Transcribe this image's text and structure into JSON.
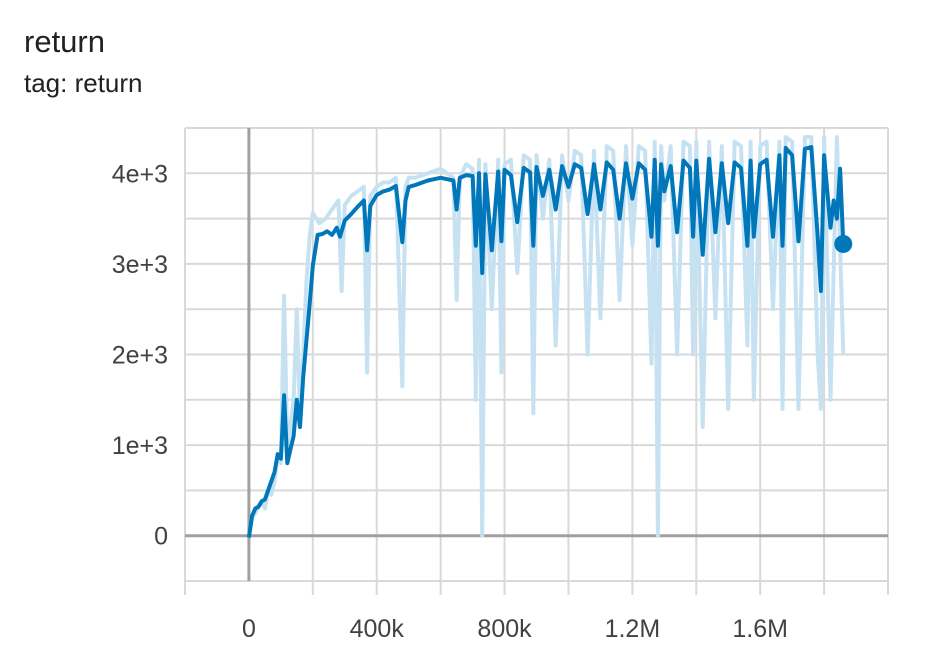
{
  "header": {
    "title": "return",
    "subtitle": "tag: return"
  },
  "colors": {
    "smoothed": "#0077bb",
    "raw": "#c6e2f2",
    "grid": "#d9d9d9",
    "zero_axis": "#a0a0a0"
  },
  "chart_data": {
    "type": "line",
    "title": "return",
    "subtitle": "tag: return",
    "xlabel": "",
    "ylabel": "",
    "xlim": [
      -200000,
      2000000
    ],
    "ylim": [
      -500,
      4500
    ],
    "grid": true,
    "legend": "none",
    "x_ticks": [
      0,
      400000,
      800000,
      1200000,
      1600000
    ],
    "x_tick_labels": [
      "0",
      "400k",
      "800k",
      "1.2M",
      "1.6M"
    ],
    "y_ticks": [
      0,
      1000,
      2000,
      3000,
      4000
    ],
    "y_tick_labels": [
      "0",
      "1e+3",
      "2e+3",
      "3e+3",
      "4e+3"
    ],
    "series": [
      {
        "role": "raw",
        "x": [
          5000,
          10000,
          20000,
          30000,
          40000,
          50000,
          60000,
          70000,
          80000,
          90000,
          100000,
          110000,
          120000,
          130000,
          140000,
          150000,
          160000,
          170000,
          180000,
          190000,
          200000,
          220000,
          240000,
          260000,
          280000,
          290000,
          300000,
          320000,
          340000,
          360000,
          370000,
          380000,
          400000,
          420000,
          440000,
          460000,
          480000,
          490000,
          500000,
          520000,
          560000,
          600000,
          640000,
          650000,
          660000,
          680000,
          700000,
          710000,
          720000,
          730000,
          740000,
          760000,
          780000,
          790000,
          800000,
          820000,
          840000,
          860000,
          880000,
          890000,
          900000,
          920000,
          940000,
          960000,
          980000,
          1000000,
          1020000,
          1040000,
          1060000,
          1080000,
          1100000,
          1120000,
          1140000,
          1160000,
          1180000,
          1200000,
          1220000,
          1240000,
          1260000,
          1270000,
          1280000,
          1290000,
          1300000,
          1320000,
          1340000,
          1360000,
          1380000,
          1390000,
          1400000,
          1420000,
          1440000,
          1460000,
          1480000,
          1500000,
          1520000,
          1540000,
          1560000,
          1570000,
          1580000,
          1600000,
          1620000,
          1640000,
          1660000,
          1670000,
          1680000,
          1700000,
          1720000,
          1740000,
          1760000,
          1780000,
          1790000,
          1800000,
          1820000,
          1840000,
          1860000
        ],
        "values": [
          100,
          200,
          250,
          320,
          380,
          300,
          500,
          450,
          600,
          900,
          800,
          2650,
          1000,
          1200,
          1500,
          2500,
          1300,
          2000,
          2800,
          3300,
          3560,
          3450,
          3500,
          3600,
          3700,
          2700,
          3650,
          3750,
          3800,
          3850,
          1800,
          3750,
          3850,
          3900,
          3900,
          3950,
          1650,
          3850,
          3950,
          3950,
          4000,
          4050,
          3950,
          2600,
          3950,
          4100,
          4050,
          1500,
          4150,
          0,
          4100,
          2500,
          4150,
          1800,
          4100,
          4150,
          2900,
          4200,
          4150,
          1350,
          4200,
          3500,
          4150,
          2100,
          4200,
          3700,
          4250,
          4200,
          2000,
          4250,
          2400,
          4300,
          4250,
          2600,
          4300,
          3200,
          4300,
          4250,
          1900,
          4350,
          0,
          4300,
          3700,
          4300,
          2000,
          4350,
          4300,
          2000,
          4350,
          1200,
          4350,
          2400,
          4300,
          1400,
          4350,
          4300,
          2100,
          4350,
          1500,
          4300,
          4350,
          2500,
          4350,
          1400,
          4400,
          4350,
          1400,
          4400,
          4400,
          2000,
          1400,
          4400,
          1500,
          4400,
          2000
        ]
      },
      {
        "role": "smoothed",
        "x": [
          0,
          10000,
          20000,
          30000,
          40000,
          50000,
          60000,
          70000,
          80000,
          90000,
          100000,
          110000,
          120000,
          130000,
          140000,
          150000,
          160000,
          170000,
          180000,
          190000,
          200000,
          215000,
          230000,
          245000,
          260000,
          275000,
          285000,
          300000,
          320000,
          340000,
          360000,
          370000,
          380000,
          400000,
          420000,
          440000,
          460000,
          480000,
          490000,
          500000,
          520000,
          560000,
          600000,
          640000,
          650000,
          660000,
          680000,
          700000,
          710000,
          720000,
          730000,
          740000,
          760000,
          780000,
          790000,
          800000,
          820000,
          840000,
          860000,
          880000,
          890000,
          900000,
          920000,
          940000,
          960000,
          980000,
          1000000,
          1020000,
          1040000,
          1060000,
          1080000,
          1100000,
          1120000,
          1140000,
          1160000,
          1180000,
          1200000,
          1220000,
          1240000,
          1260000,
          1270000,
          1280000,
          1290000,
          1300000,
          1320000,
          1340000,
          1360000,
          1380000,
          1390000,
          1400000,
          1420000,
          1440000,
          1460000,
          1480000,
          1500000,
          1520000,
          1540000,
          1560000,
          1570000,
          1580000,
          1600000,
          1620000,
          1640000,
          1660000,
          1670000,
          1680000,
          1700000,
          1720000,
          1740000,
          1760000,
          1780000,
          1790000,
          1800000,
          1820000,
          1830000,
          1840000,
          1850000,
          1860000
        ],
        "values": [
          -20,
          220,
          300,
          320,
          380,
          400,
          500,
          600,
          700,
          900,
          850,
          1550,
          800,
          950,
          1100,
          1500,
          1200,
          1750,
          2150,
          2550,
          2980,
          3320,
          3330,
          3360,
          3320,
          3400,
          3300,
          3480,
          3550,
          3630,
          3700,
          3150,
          3640,
          3760,
          3800,
          3820,
          3860,
          3240,
          3700,
          3850,
          3870,
          3920,
          3950,
          3920,
          3600,
          3950,
          3980,
          3970,
          3200,
          4000,
          2900,
          3990,
          3150,
          4020,
          3250,
          4040,
          3980,
          3460,
          4060,
          4010,
          3200,
          4070,
          3750,
          4040,
          3600,
          4080,
          3850,
          4100,
          4060,
          3550,
          4100,
          3600,
          4120,
          4040,
          3500,
          4110,
          3720,
          4110,
          4040,
          3300,
          4150,
          3200,
          4100,
          3800,
          4080,
          3350,
          4140,
          4060,
          3300,
          4140,
          3100,
          4160,
          3350,
          4110,
          3450,
          4120,
          4060,
          3200,
          4140,
          3300,
          4100,
          4150,
          3300,
          4200,
          3200,
          4280,
          4200,
          3250,
          4270,
          4290,
          3300,
          2700,
          4200,
          3400,
          3700,
          3500,
          4050,
          3220
        ]
      }
    ]
  }
}
